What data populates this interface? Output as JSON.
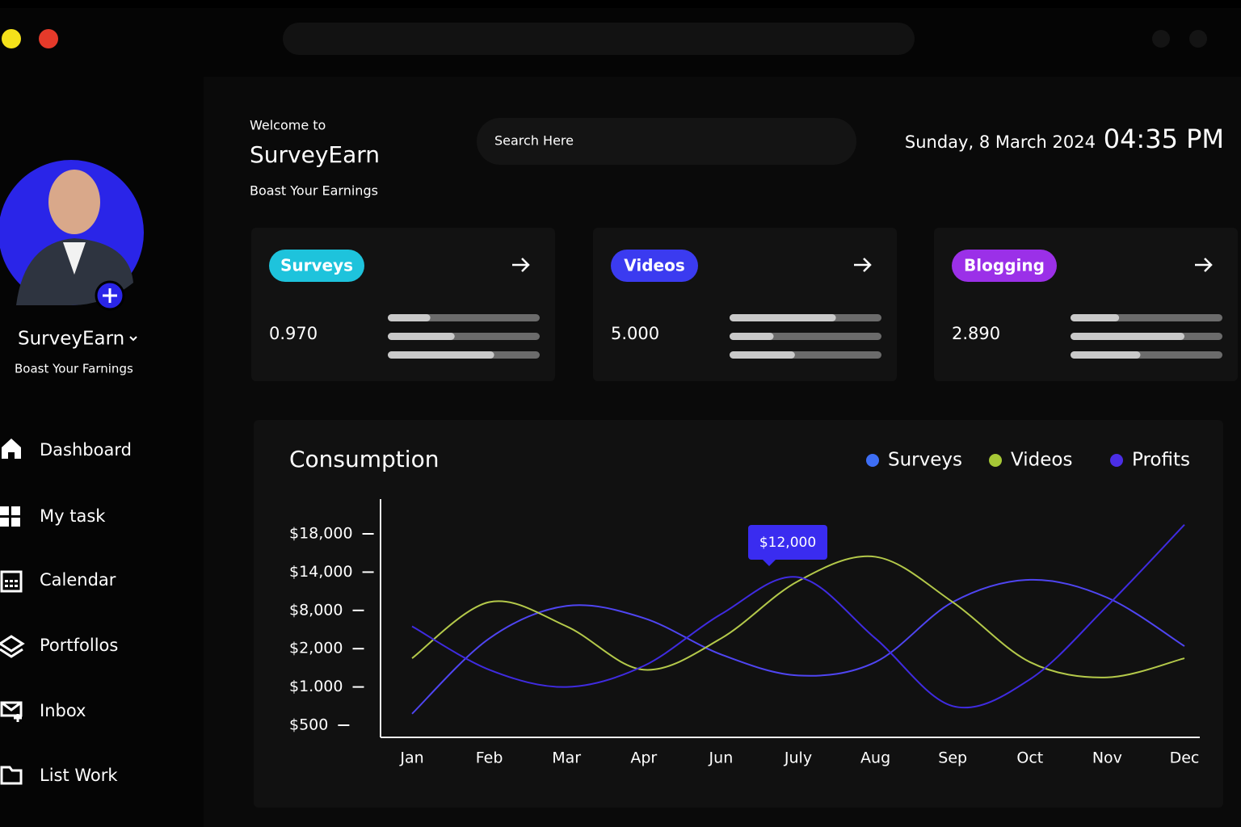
{
  "header": {
    "welcome": "Welcome to",
    "title": "SurveyEarn",
    "subtitle": "Boast Your Earnings",
    "search_placeholder": "Search Here",
    "date": "Sunday, 8 March 2024",
    "time": "04:35 PM"
  },
  "profile": {
    "name": "SurveyEarn",
    "tagline": "Boast Your Farnings"
  },
  "nav": [
    "Dashboard",
    "My task",
    "Calendar",
    "Portfollos",
    "Inbox",
    "List Work"
  ],
  "cards": [
    {
      "label": "Surveys",
      "value": "0.970",
      "color": "#1ec3dc",
      "bars": [
        0.28,
        0.44,
        0.7
      ]
    },
    {
      "label": "Videos",
      "value": "5.000",
      "color": "#3b3bf0",
      "bars": [
        0.7,
        0.29,
        0.43
      ]
    },
    {
      "label": "Blogging",
      "value": "2.890",
      "color": "#9b30e8",
      "bars": [
        0.32,
        0.75,
        0.46
      ]
    }
  ],
  "chart_data": {
    "type": "line",
    "title": "Consumption",
    "annotation": "$12,000",
    "categories": [
      "Jan",
      "Feb",
      "Mar",
      "Apr",
      "Jun",
      "July",
      "Aug",
      "Sep",
      "Oct",
      "Nov",
      "Dec"
    ],
    "series": [
      {
        "name": "Surveys",
        "color": "#4f45f2",
        "values": [
          650,
          3600,
          8700,
          6800,
          1850,
          1300,
          1650,
          9300,
          12800,
          10000,
          2400
        ]
      },
      {
        "name": "Videos",
        "color": "#b4c94a",
        "values": [
          1750,
          9300,
          5500,
          1450,
          3600,
          12600,
          15600,
          9300,
          1650,
          1250,
          1750
        ]
      },
      {
        "name": "Profits",
        "color": "#3f2be0",
        "values": [
          5500,
          1450,
          1000,
          1550,
          7400,
          13200,
          3600,
          750,
          1200,
          8700,
          19100
        ]
      }
    ],
    "legend_colors": [
      "#3d6ef5",
      "#a6c836",
      "#4b2ee6"
    ],
    "ylim": [
      0,
      22000
    ],
    "yticks": [
      {
        "value": 500,
        "label": "$500"
      },
      {
        "value": 1000,
        "label": "$1.000"
      },
      {
        "value": 2000,
        "label": "$2,000"
      },
      {
        "value": 8000,
        "label": "$8,000"
      },
      {
        "value": 14000,
        "label": "$14,000"
      },
      {
        "value": 18000,
        "label": "$18,000"
      }
    ],
    "legend": "top-right"
  }
}
